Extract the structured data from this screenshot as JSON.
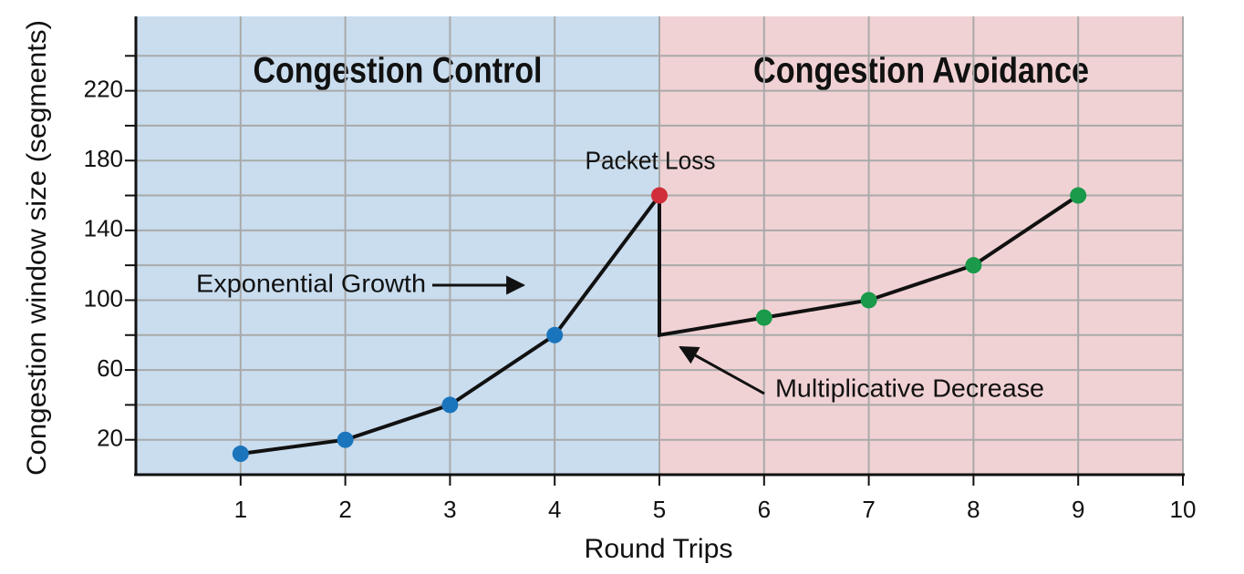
{
  "chart_data": {
    "type": "line",
    "xlabel": "Round Trips",
    "ylabel": "Congestion window size (segments)",
    "xlim": [
      0,
      10
    ],
    "xticks": [
      1,
      2,
      3,
      4,
      5,
      6,
      7,
      8,
      9,
      10
    ],
    "ylim": [
      0,
      260
    ],
    "yticks": [
      20,
      60,
      100,
      140,
      180,
      220
    ],
    "ygrid": [
      20,
      40,
      60,
      80,
      100,
      120,
      140,
      160,
      180,
      200,
      220,
      240
    ],
    "grid": true,
    "regions": [
      {
        "label": "Congestion Control",
        "xlim": [
          0,
          5
        ],
        "color": "#c9ddef"
      },
      {
        "label": "Congestion Avoidance",
        "xlim": [
          5,
          10
        ],
        "color": "#f1d2d4"
      }
    ],
    "line": {
      "color": "#111111",
      "x": [
        1,
        2,
        3,
        4,
        5,
        5,
        6,
        7,
        8,
        9
      ],
      "values": [
        12,
        20,
        40,
        80,
        160,
        80,
        90,
        100,
        120,
        160
      ]
    },
    "points": [
      {
        "color": "#1b75bc",
        "x": [
          1,
          2,
          3,
          4
        ],
        "values": [
          12,
          20,
          40,
          80
        ]
      },
      {
        "color": "#d02e3a",
        "x": [
          5
        ],
        "values": [
          160
        ]
      },
      {
        "color": "#1a9a4a",
        "x": [
          6,
          7,
          8,
          9
        ],
        "values": [
          90,
          100,
          120,
          160
        ]
      }
    ],
    "annotations": [
      "Packet Loss",
      "Exponential Growth",
      "Multiplicative Decrease"
    ]
  }
}
